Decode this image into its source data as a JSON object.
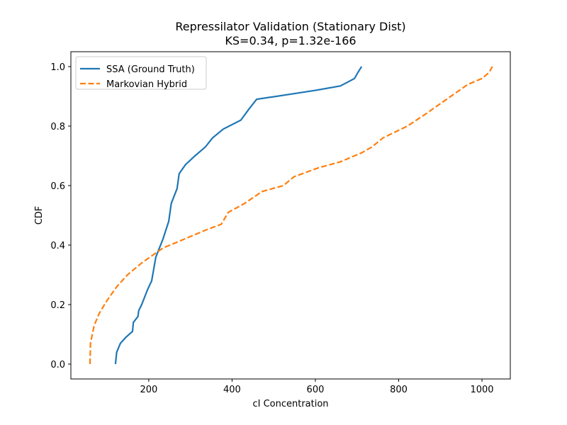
{
  "chart_data": {
    "type": "line",
    "title": "Repressilator Validation (Stationary Dist)",
    "subtitle": "KS=0.34, p=1.32e-166",
    "xlabel": "cI Concentration",
    "ylabel": "CDF",
    "xlim": [
      13,
      1068
    ],
    "ylim": [
      -0.05,
      1.05
    ],
    "xticks": [
      200,
      400,
      600,
      800,
      1000
    ],
    "yticks": [
      {
        "value": 0,
        "label": "0.0"
      },
      0.2,
      0.4,
      0.6,
      0.8,
      {
        "value": 1,
        "label": "1.0"
      }
    ],
    "legend": "upper left",
    "series": [
      {
        "name": "SSA (Ground Truth)",
        "color": "#1f77b4",
        "dash": "solid",
        "x": [
          120,
          123,
          132,
          145,
          161,
          163,
          174,
          176,
          183,
          197,
          207,
          217,
          234,
          248,
          254,
          268,
          273,
          288,
          311,
          336,
          353,
          379,
          421,
          442,
          459,
          600,
          660,
          694,
          702,
          711
        ],
        "values": [
          0,
          0.04,
          0.07,
          0.09,
          0.11,
          0.14,
          0.16,
          0.18,
          0.2,
          0.25,
          0.28,
          0.36,
          0.42,
          0.48,
          0.54,
          0.59,
          0.64,
          0.67,
          0.7,
          0.73,
          0.76,
          0.79,
          0.82,
          0.86,
          0.89,
          0.92,
          0.935,
          0.96,
          0.98,
          1
        ]
      },
      {
        "name": "Markovian Hybrid",
        "color": "#ff7f0e",
        "dash": "dashed",
        "x": [
          59,
          60,
          69,
          81,
          98,
          123,
          149,
          183,
          234,
          285,
          336,
          374,
          391,
          430,
          472,
          523,
          549,
          608,
          660,
          711,
          736,
          762,
          821,
          864,
          915,
          966,
          1000,
          1017,
          1025
        ],
        "values": [
          0,
          0.07,
          0.13,
          0.17,
          0.21,
          0.26,
          0.3,
          0.34,
          0.39,
          0.42,
          0.45,
          0.47,
          0.51,
          0.54,
          0.58,
          0.6,
          0.63,
          0.66,
          0.68,
          0.71,
          0.73,
          0.76,
          0.8,
          0.84,
          0.89,
          0.94,
          0.96,
          0.98,
          1
        ]
      }
    ]
  }
}
